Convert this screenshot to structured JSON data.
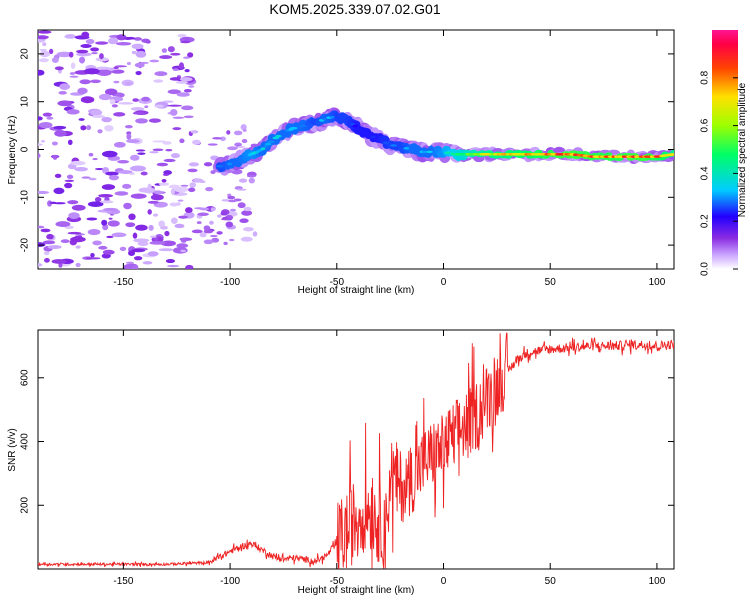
{
  "figure_title": "KOM5.2025.339.07.02.G01",
  "chart_data": [
    {
      "type": "heatmap",
      "name": "spectrogram",
      "xlabel": "Height of straight line (km)",
      "ylabel": "Frequency (Hz)",
      "xlim": [
        -190,
        108
      ],
      "ylim": [
        -25,
        25
      ],
      "xticks": [
        -150,
        -100,
        -50,
        0,
        50,
        100
      ],
      "yticks": [
        -20,
        -10,
        0,
        10,
        20
      ],
      "grid": false,
      "colorbar": {
        "label": "Normalized spectral amplitude",
        "range": [
          0,
          1
        ],
        "ticks": [
          "0.0",
          "0.2",
          "0.4",
          "0.6",
          "0.8"
        ],
        "colors": [
          "#ffffff",
          "#c9a4ff",
          "#8a2be2",
          "#2200ff",
          "#00ccff",
          "#00ff66",
          "#9dff00",
          "#ffe100",
          "#ff4400",
          "#ff0044",
          "#ff1493"
        ]
      },
      "ridge": {
        "height_km": [
          -105,
          -100,
          -95,
          -90,
          -85,
          -80,
          -75,
          -70,
          -65,
          -60,
          -55,
          -50,
          -45,
          -40,
          -35,
          -30,
          -25,
          -20,
          -15,
          -10,
          -5,
          0,
          5,
          10,
          20,
          30,
          40,
          50,
          60,
          70,
          80,
          90,
          100,
          108
        ],
        "frequency_hz": [
          -3.5,
          -3,
          -2,
          -1,
          0,
          2,
          3.5,
          4.5,
          5,
          5.5,
          6.5,
          7,
          6,
          4.5,
          3,
          2,
          1,
          0.5,
          0,
          -0.5,
          -0.5,
          -0.5,
          -1,
          -1,
          -1,
          -1,
          -1,
          -1,
          -1,
          -1.5,
          -1.5,
          -1.5,
          -1.5,
          -1
        ],
        "amplitude": [
          0.3,
          0.35,
          0.35,
          0.4,
          0.35,
          0.35,
          0.35,
          0.35,
          0.35,
          0.3,
          0.35,
          0.3,
          0.3,
          0.25,
          0.25,
          0.25,
          0.3,
          0.3,
          0.35,
          0.35,
          0.35,
          0.4,
          0.5,
          0.55,
          0.7,
          0.75,
          0.8,
          0.85,
          0.9,
          0.85,
          0.85,
          0.9,
          0.85,
          0.7
        ]
      }
    },
    {
      "type": "line",
      "name": "snr",
      "xlabel": "Height of straight line (km)",
      "ylabel": "SNR (v/v)",
      "xlim": [
        -190,
        108
      ],
      "ylim": [
        0,
        750
      ],
      "xticks": [
        -150,
        -100,
        -50,
        0,
        50,
        100
      ],
      "yticks": [
        200,
        400,
        600
      ],
      "grid": false,
      "color": "#ee2222",
      "x": [
        -190,
        -170,
        -150,
        -130,
        -110,
        -100,
        -95,
        -90,
        -85,
        -80,
        -75,
        -70,
        -60,
        -55,
        -50,
        -45,
        -40,
        -35,
        -30,
        -27,
        -25,
        -20,
        -15,
        -10,
        -5,
        0,
        5,
        10,
        15,
        20,
        25,
        30,
        35,
        40,
        50,
        60,
        70,
        80,
        90,
        100,
        108
      ],
      "y": [
        15,
        15,
        15,
        15,
        20,
        55,
        70,
        80,
        60,
        40,
        30,
        35,
        25,
        40,
        80,
        120,
        170,
        190,
        150,
        120,
        300,
        250,
        280,
        330,
        360,
        380,
        420,
        450,
        480,
        530,
        580,
        620,
        660,
        680,
        690,
        695,
        700,
        700,
        705,
        700,
        705
      ]
    }
  ]
}
